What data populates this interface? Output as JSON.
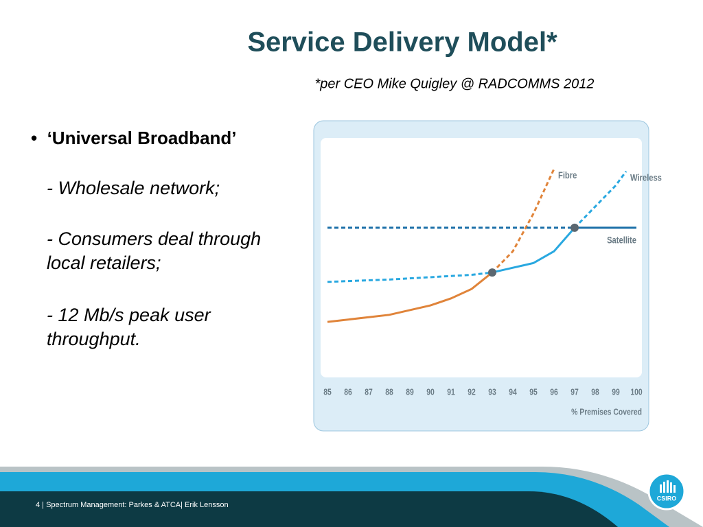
{
  "slide": {
    "title": "Service Delivery Model*",
    "subtitle": "*per CEO Mike Quigley @ RADCOMMS 2012",
    "bullet": "‘Universal Broadband’",
    "items": [
      "- Wholesale network;",
      "- Consumers deal through local retailers;",
      "- 12 Mb/s peak user throughput."
    ],
    "footer": "4  |  Spectrum Management:  Parkes & ATCA|  Erik Lensson",
    "logo": "CSIRO"
  },
  "chart_data": {
    "type": "line",
    "xlabel": "% Premises Covered",
    "xlim": [
      85,
      100
    ],
    "xticks": [
      85,
      86,
      87,
      88,
      89,
      90,
      91,
      92,
      93,
      94,
      95,
      96,
      97,
      98,
      99,
      100
    ],
    "ylim": [
      0,
      100
    ],
    "series": [
      {
        "name": "Fibre",
        "color": "#e0843a",
        "segments": [
          {
            "style": "solid",
            "x": [
              85,
              88,
              90,
              91,
              92,
              93
            ],
            "values": [
              23,
              26,
              30,
              33,
              37,
              44
            ]
          },
          {
            "style": "dashed",
            "x": [
              93,
              94,
              95,
              96
            ],
            "values": [
              44,
              53,
              69,
              88
            ]
          }
        ]
      },
      {
        "name": "Wireless",
        "color": "#29a8e0",
        "segments": [
          {
            "style": "dashed",
            "x": [
              85,
              88,
              90,
              92,
              93
            ],
            "values": [
              40,
              41,
              42,
              43,
              44
            ]
          },
          {
            "style": "solid",
            "x": [
              93,
              94,
              95,
              96,
              97
            ],
            "values": [
              44,
              46,
              48,
              53,
              63
            ]
          },
          {
            "style": "dashed",
            "x": [
              97,
              98,
              99,
              99.5
            ],
            "values": [
              63,
              72,
              81,
              87
            ]
          }
        ]
      },
      {
        "name": "Satellite",
        "color": "#1b6fa8",
        "segments": [
          {
            "style": "dashed",
            "x": [
              85,
              97
            ],
            "values": [
              63,
              63
            ]
          },
          {
            "style": "solid",
            "x": [
              97,
              100
            ],
            "values": [
              63,
              63
            ]
          }
        ]
      }
    ]
  }
}
